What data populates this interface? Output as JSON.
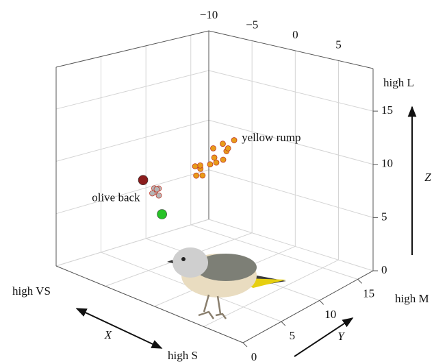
{
  "chart_data": {
    "type": "scatter3d",
    "xlim": [
      -10,
      9
    ],
    "ylim": [
      0,
      17
    ],
    "zlim": [
      0,
      19
    ],
    "xticks": [
      {
        "value": -10,
        "label": "−10"
      },
      {
        "value": -5,
        "label": "−5"
      },
      0,
      5
    ],
    "yticks": [
      0,
      5,
      10,
      15
    ],
    "zticks": [
      0,
      5,
      10,
      15
    ],
    "grid": true,
    "x_label": "X",
    "y_label": "Y",
    "z_label": "Z",
    "x_low_label": "high VS",
    "x_high_label": "high S",
    "y_high_label": "high M",
    "z_high_label": "high L",
    "series": [
      {
        "name": "yellow rump",
        "color": "#e89c1a",
        "x": [
          -4.3,
          -4.0,
          -4.6,
          -3.8,
          -4.9,
          -4.1,
          -4.6,
          -3.9,
          -4.4,
          -5.0,
          -3.6,
          -4.2,
          -4.8,
          -3.7
        ],
        "y": [
          11.9,
          13.9,
          13.2,
          12.8,
          12.4,
          11.2,
          10.6,
          10.1,
          9.9,
          11.0,
          12.2,
          13.4,
          10.2,
          11.5
        ],
        "z": [
          9.1,
          10.3,
          10.0,
          9.6,
          9.7,
          8.7,
          8.3,
          8.0,
          7.9,
          8.4,
          9.0,
          9.6,
          8.6,
          8.9
        ]
      },
      {
        "name": "olive back",
        "color": "#b5b5b5",
        "x": [
          -4.3,
          -4.1,
          -4.5,
          -4.2,
          -4.4,
          -4.0
        ],
        "y": [
          5.0,
          5.2,
          4.9,
          4.8,
          5.3,
          5.1
        ],
        "z": [
          7.8,
          8.1,
          7.6,
          8.2,
          7.9,
          7.5
        ]
      },
      {
        "color": "#8b1c1c",
        "x": [
          -4.3
        ],
        "y": [
          3.6
        ],
        "z": [
          9.3
        ]
      },
      {
        "color": "#27c227",
        "x": [
          -4.3
        ],
        "y": [
          5.8
        ],
        "z": [
          5.4
        ]
      }
    ]
  }
}
